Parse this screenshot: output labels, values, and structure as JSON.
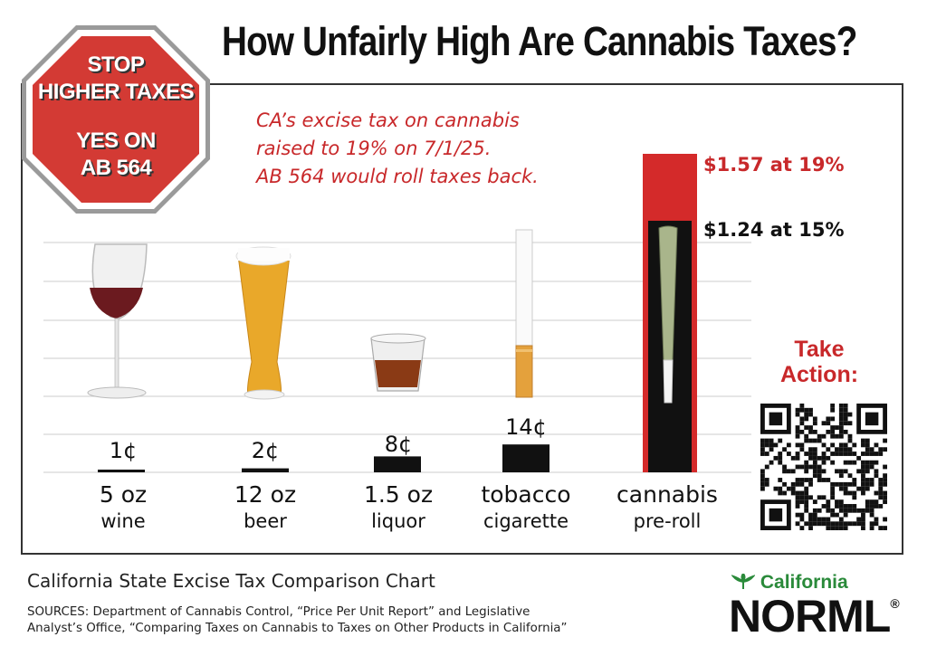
{
  "title": "How Unfairly High Are Cannabis Taxes?",
  "stop_sign": {
    "line1": "STOP",
    "line2": "HIGHER TAXES",
    "line3": "YES ON",
    "line4": "AB 564"
  },
  "note": {
    "line1": "CA’s excise tax on cannabis",
    "line2": "raised to 19% on 7/1/25.",
    "line3": "AB 564 would roll taxes back."
  },
  "chart_data": {
    "type": "bar",
    "title": "California State Excise Tax Comparison Chart",
    "unit": "cents per serving",
    "categories": [
      "5 oz wine",
      "12 oz beer",
      "1.5 oz liquor",
      "tobacco cigarette",
      "cannabis pre-roll"
    ],
    "values": [
      1,
      2,
      8,
      14,
      157
    ],
    "value_labels": [
      "1¢",
      "2¢",
      "8¢",
      "14¢",
      "$1.57 at 19%"
    ],
    "cannabis_split": {
      "at_19": 1.57,
      "at_15": 1.24,
      "label_19": "$1.57 at 19%",
      "label_15": "$1.24 at 15%"
    },
    "bar_colors": {
      "default": "#111111",
      "cannabis_19": "#d42a2a",
      "cannabis_15": "#111111"
    },
    "ylim": [
      0,
      160
    ],
    "grid": true
  },
  "categories_display": [
    {
      "top": "5 oz",
      "bottom": "wine",
      "value": "1¢"
    },
    {
      "top": "12 oz",
      "bottom": "beer",
      "value": "2¢"
    },
    {
      "top": "1.5 oz",
      "bottom": "liquor",
      "value": "8¢"
    },
    {
      "top": "tobacco",
      "bottom": "cigarette",
      "value": "14¢"
    },
    {
      "top": "cannabis",
      "bottom": "pre-roll",
      "value": ""
    }
  ],
  "prices": {
    "p19": "$1.57 at 19%",
    "p15": "$1.24 at 15%"
  },
  "take_action": {
    "line1": "Take",
    "line2": "Action:"
  },
  "footer": {
    "title": "California State Excise Tax Comparison Chart",
    "sources_line1": "SOURCES: Department of Cannabis Control, “Price Per Unit Report” and Legislative",
    "sources_line2": "Analyst’s Office, “Comparing Taxes on Cannabis to Taxes on Other Products in California”"
  },
  "logo": {
    "top": "California",
    "main": "NORML",
    "mark": "®"
  },
  "colors": {
    "accent_red": "#c8282a",
    "bar_red": "#d42a2a",
    "green": "#2a8a3a",
    "ink": "#111111"
  }
}
